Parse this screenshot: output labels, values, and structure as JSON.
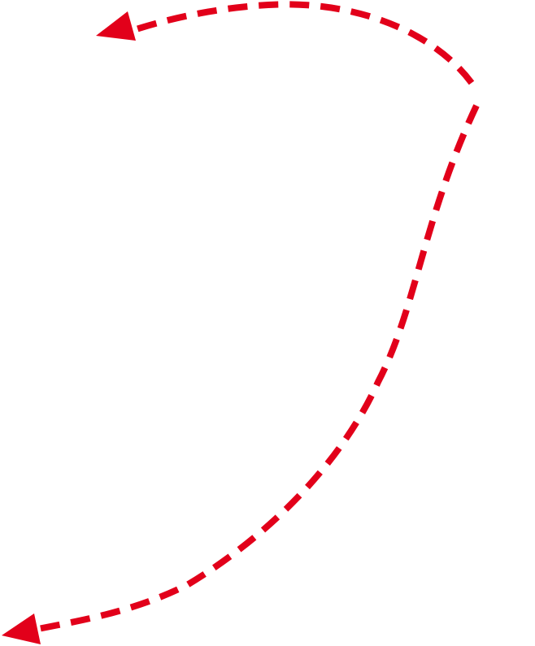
{
  "diagram": {
    "background_color": "#ffffff",
    "arrow_color": "#e2001a",
    "line_style": "dashed",
    "arrows": [
      {
        "name": "upper-curved-arrow",
        "direction": "left"
      },
      {
        "name": "lower-curved-arrow",
        "direction": "left"
      }
    ]
  }
}
